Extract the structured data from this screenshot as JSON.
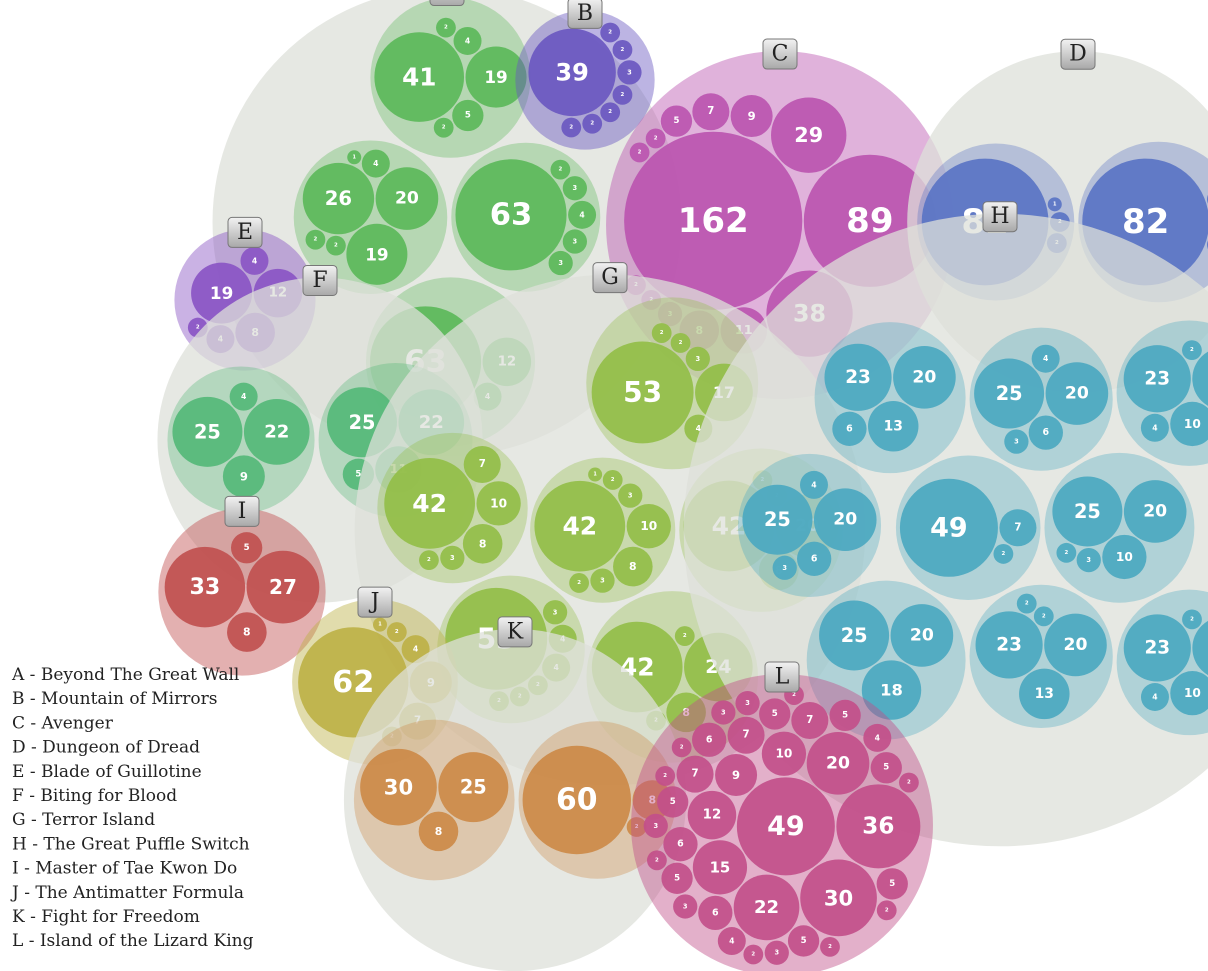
{
  "chart_data": {
    "type": "packed_bubble",
    "groups": [
      {
        "label": "A",
        "color": "#5cb85a",
        "clusters": [
          {
            "values": [
              26,
              20,
              19,
              4,
              2,
              2,
              1
            ]
          },
          {
            "values": [
              63,
              4,
              3,
              3,
              3,
              2
            ]
          },
          {
            "values": [
              63,
              12,
              4
            ]
          },
          {
            "values": [
              41,
              19,
              5,
              4,
              2,
              2
            ]
          }
        ]
      },
      {
        "label": "B",
        "color": "#6a58c0",
        "clusters": [
          {
            "values": [
              39,
              3,
              2,
              2,
              2,
              2,
              2,
              2
            ]
          }
        ]
      },
      {
        "label": "C",
        "color": "#bb55b0",
        "clusters": [
          {
            "values": [
              162,
              89,
              38,
              29,
              11,
              9,
              8,
              7,
              5,
              3,
              2,
              2,
              2,
              2
            ]
          }
        ]
      },
      {
        "label": "D",
        "color": "#5a74c4",
        "clusters": [
          {
            "values": [
              82,
              2,
              2,
              1
            ]
          },
          {
            "values": [
              82,
              3,
              2,
              2
            ]
          }
        ]
      },
      {
        "label": "E",
        "color": "#8a55c4",
        "clusters": [
          {
            "values": [
              19,
              12,
              8,
              4,
              4,
              2
            ]
          }
        ]
      },
      {
        "label": "F",
        "color": "#55b878",
        "clusters": [
          {
            "values": [
              25,
              22,
              9,
              4
            ]
          },
          {
            "values": [
              25,
              22,
              11,
              5
            ]
          }
        ]
      },
      {
        "label": "G",
        "color": "#92be48",
        "clusters": [
          {
            "values": [
              42,
              10,
              8,
              3,
              3,
              2,
              2,
              1
            ]
          },
          {
            "values": [
              42,
              20,
              8,
              2,
              2
            ]
          },
          {
            "values": [
              42,
              24,
              8,
              2,
              2
            ]
          },
          {
            "values": [
              53,
              17,
              4,
              3,
              2,
              2
            ]
          },
          {
            "values": [
              53,
              4,
              4,
              3,
              2,
              2,
              2
            ]
          },
          {
            "values": [
              42,
              10,
              8,
              7,
              3,
              2
            ]
          }
        ]
      },
      {
        "label": "H",
        "color": "#4ba8c0",
        "clusters": [
          {
            "values": [
              49,
              7,
              2
            ]
          },
          {
            "values": [
              25,
              20,
              10,
              3,
              2
            ]
          },
          {
            "values": [
              23,
              20,
              13,
              2,
              2
            ]
          },
          {
            "values": [
              25,
              20,
              6,
              4,
              3
            ]
          },
          {
            "values": [
              23,
              20,
              13,
              6
            ]
          },
          {
            "values": [
              25,
              20,
              18
            ]
          },
          {
            "values": [
              25,
              20,
              6,
              4,
              3
            ]
          },
          {
            "values": [
              23,
              20,
              10,
              4,
              2
            ]
          },
          {
            "values": [
              23,
              20,
              10,
              4,
              2
            ]
          }
        ]
      },
      {
        "label": "I",
        "color": "#c0504f",
        "clusters": [
          {
            "values": [
              33,
              27,
              8,
              5
            ]
          }
        ]
      },
      {
        "label": "J",
        "color": "#bdb146",
        "clusters": [
          {
            "values": [
              62,
              9,
              7,
              4,
              2,
              2,
              1
            ]
          }
        ]
      },
      {
        "label": "K",
        "color": "#cc8a48",
        "clusters": [
          {
            "values": [
              30,
              25,
              8
            ]
          },
          {
            "values": [
              60,
              8,
              2
            ]
          }
        ]
      },
      {
        "label": "L",
        "color": "#c24f8a",
        "clusters": [
          {
            "values": [
              49,
              36,
              30,
              22,
              20,
              15,
              12,
              10,
              9,
              7,
              7,
              7,
              6,
              6,
              6,
              5,
              5,
              5,
              5,
              5,
              5,
              5,
              4,
              4,
              3,
              3,
              3,
              3,
              3,
              2,
              2,
              2,
              2,
              2,
              2,
              2,
              2
            ]
          }
        ]
      }
    ],
    "legend": [
      "A - Beyond The Great Wall",
      "B - Mountain of Mirrors",
      "C - Avenger",
      "D - Dungeon of Dread",
      "E - Blade of Guillotine",
      "F - Biting for Blood",
      "G - Terror Island",
      "H - The Great Puffle Switch",
      "I - Master of Tae Kwon Do",
      "J - The Antimatter Formula",
      "K - Fight for Freedom",
      "L - Island of the Lizard King"
    ]
  }
}
